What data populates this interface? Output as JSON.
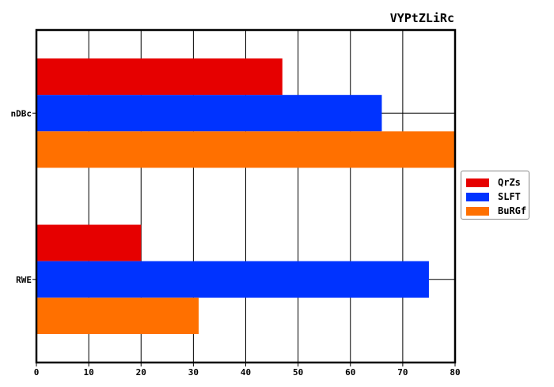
{
  "chart_data": {
    "type": "bar",
    "orientation": "horizontal",
    "title": "VYPtZLiRc",
    "xlabel": "",
    "ylabel": "",
    "categories": [
      "nDBc",
      "RWE"
    ],
    "series": [
      {
        "name": "QrZs",
        "color": "#e60000",
        "values": [
          47,
          20
        ]
      },
      {
        "name": "SLFT",
        "color": "#0033ff",
        "values": [
          66,
          75
        ]
      },
      {
        "name": "BuRGf",
        "color": "#ff7000",
        "values": [
          80,
          31
        ]
      }
    ],
    "xlim": [
      0,
      80
    ],
    "xticks": [
      "0",
      "10",
      "20",
      "30",
      "40",
      "50",
      "60",
      "70",
      "80"
    ],
    "grid": true,
    "legend_position": "right"
  }
}
